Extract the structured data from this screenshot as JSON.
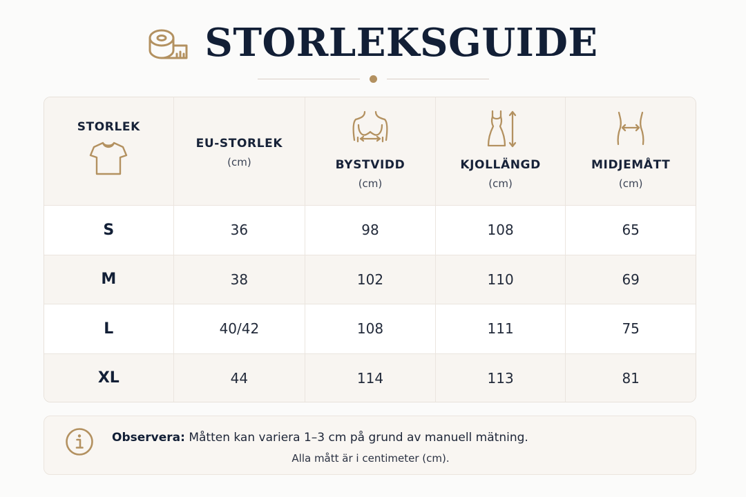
{
  "title": "STORLEKSGUIDE",
  "accent_color": "#b39160",
  "icons": {
    "title": "measuring-tape-icon",
    "size_column": "tshirt-icon",
    "bust_column": "torso-bust-icon",
    "length_column": "dress-length-icon",
    "waist_column": "waist-icon",
    "note": "info-icon"
  },
  "table": {
    "headers": [
      {
        "label": "STORLEK",
        "unit": ""
      },
      {
        "label": "EU-STORLEK",
        "unit": "(cm)"
      },
      {
        "label": "BYSTVIDD",
        "unit": "(cm)"
      },
      {
        "label": "KJOLLÄNGD",
        "unit": "(cm)"
      },
      {
        "label": "MIDJEMÅTT",
        "unit": "(cm)"
      }
    ],
    "rows": [
      {
        "size": "S",
        "eu": "36",
        "bust": "98",
        "length": "108",
        "waist": "65"
      },
      {
        "size": "M",
        "eu": "38",
        "bust": "102",
        "length": "110",
        "waist": "69"
      },
      {
        "size": "L",
        "eu": "40/42",
        "bust": "108",
        "length": "111",
        "waist": "75"
      },
      {
        "size": "XL",
        "eu": "44",
        "bust": "114",
        "length": "113",
        "waist": "81"
      }
    ]
  },
  "note": {
    "label": "Observera:",
    "text": " Måtten kan variera 1–3 cm på grund av manuell mätning.",
    "subtext": "Alla mått är i centimeter (cm)."
  }
}
